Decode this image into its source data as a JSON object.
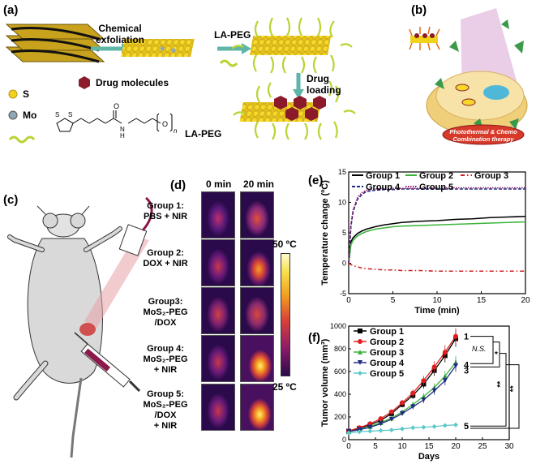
{
  "panel_labels": {
    "a": "(a)",
    "b": "(b)",
    "c": "(c)",
    "d": "(d)",
    "e": "(e)",
    "f": "(f)"
  },
  "panel_a": {
    "step1_line1": "Chemical",
    "step1_line2": "exfoliation",
    "step2": "LA-PEG",
    "step3_line1": "Drug",
    "step3_line2": "loading",
    "legend_s": "S",
    "legend_mo": "Mo",
    "legend_drug": "Drug molecules",
    "legend_peg": "LA-PEG",
    "colors": {
      "sheet": "#c8a21c",
      "sheet_dark": "#1a1a1a",
      "s_atom": "#f2d21a",
      "mo_atom": "#8fa6b4",
      "drug": "#8b1a2a",
      "peg": "#b8d432",
      "arrow": "#5fb6a8"
    }
  },
  "panel_b": {
    "caption_line1": "Photothermal & Chemo",
    "caption_line2": "Combination therapy"
  },
  "panel_d": {
    "time_headers": [
      "0 min",
      "20 min"
    ],
    "groups": [
      {
        "lines": [
          "Group 1:",
          "PBS  + NIR"
        ]
      },
      {
        "lines": [
          "Group 2:",
          "DOX + NIR"
        ]
      },
      {
        "lines": [
          "Group3:",
          "MoS₂-PEG",
          "/DOX"
        ]
      },
      {
        "lines": [
          "Group 4:",
          "MoS₂-PEG",
          "+ NIR"
        ]
      },
      {
        "lines": [
          "Group 5:",
          "MoS₂-PEG",
          "/DOX",
          "+ NIR"
        ]
      }
    ],
    "scale_max": "50 ºC",
    "scale_min": "25 ºC"
  },
  "chart_data": [
    {
      "type": "line",
      "xlabel": "Time (min)",
      "ylabel": "Temperature change (ºC)",
      "xlim": [
        0,
        20
      ],
      "ylim": [
        -5,
        15
      ],
      "xticks": [
        0,
        5,
        10,
        15,
        20
      ],
      "yticks": [
        -5,
        0,
        5,
        10,
        15
      ],
      "legend_position": "top",
      "x": [
        0,
        0.25,
        0.5,
        1,
        1.5,
        2,
        3,
        4,
        5,
        6,
        8,
        10,
        12,
        14,
        16,
        18,
        20
      ],
      "series": [
        {
          "name": "Group 1",
          "color": "#000000",
          "values": [
            0,
            3.5,
            4.2,
            4.9,
            5.3,
            5.6,
            6.0,
            6.3,
            6.5,
            6.7,
            6.9,
            7.0,
            7.2,
            7.3,
            7.5,
            7.6,
            7.7
          ]
        },
        {
          "name": "Group 2",
          "color": "#3cb43c",
          "values": [
            0,
            3.0,
            3.8,
            4.5,
            4.9,
            5.2,
            5.6,
            5.8,
            6.0,
            6.1,
            6.2,
            6.3,
            6.4,
            6.5,
            6.6,
            6.7,
            6.8
          ]
        },
        {
          "name": "Group 3",
          "color": "#d22020",
          "dash": "5,3,1.5,3",
          "values": [
            0,
            -0.2,
            -0.4,
            -0.6,
            -0.8,
            -0.9,
            -1.0,
            -1.1,
            -1.1,
            -1.2,
            -1.2,
            -1.3,
            -1.3,
            -1.3,
            -1.3,
            -1.3,
            -1.3
          ]
        },
        {
          "name": "Group 4",
          "color": "#202a80",
          "dash": "4,2",
          "values": [
            0,
            6.0,
            8.5,
            10.5,
            11.3,
            11.8,
            12.0,
            12.1,
            12.1,
            12.2,
            12.2,
            12.2,
            12.2,
            12.2,
            12.2,
            12.2,
            12.2
          ]
        },
        {
          "name": "Group 5",
          "color": "#8a1a6a",
          "dash": "1.5,1.5",
          "values": [
            0,
            6.2,
            8.8,
            10.8,
            11.6,
            12.0,
            12.2,
            12.3,
            12.3,
            12.3,
            12.3,
            12.4,
            12.4,
            12.4,
            12.4,
            12.4,
            12.4
          ]
        }
      ]
    },
    {
      "type": "line",
      "xlabel": "Days",
      "ylabel": "Tumor volume (mm³)",
      "xlim": [
        0,
        30
      ],
      "ylim": [
        0,
        1000
      ],
      "xticks": [
        0,
        5,
        10,
        15,
        20,
        25,
        30
      ],
      "yticks": [
        0,
        200,
        400,
        600,
        800,
        1000
      ],
      "legend_position": "top-left",
      "x": [
        0,
        2,
        4,
        6,
        8,
        10,
        12,
        14,
        16,
        18,
        20
      ],
      "series": [
        {
          "name": "Group 1",
          "color": "#000000",
          "marker": "square",
          "values": [
            75,
            100,
            130,
            170,
            230,
            310,
            390,
            490,
            610,
            740,
            890
          ]
        },
        {
          "name": "Group 2",
          "color": "#e02020",
          "marker": "circle",
          "values": [
            78,
            105,
            140,
            185,
            245,
            325,
            410,
            520,
            640,
            770,
            910
          ]
        },
        {
          "name": "Group 3",
          "color": "#3cb43c",
          "marker": "triangle-up",
          "values": [
            70,
            90,
            115,
            150,
            190,
            245,
            310,
            380,
            460,
            560,
            680
          ]
        },
        {
          "name": "Group 4",
          "color": "#202a80",
          "marker": "triangle-down",
          "values": [
            72,
            88,
            110,
            140,
            180,
            230,
            290,
            350,
            430,
            520,
            650
          ]
        },
        {
          "name": "Group 5",
          "color": "#5ec8c8",
          "marker": "diamond",
          "values": [
            60,
            70,
            75,
            80,
            85,
            95,
            105,
            110,
            115,
            125,
            130
          ]
        }
      ],
      "end_labels": [
        "1",
        "4",
        "3",
        "5"
      ],
      "significance": [
        "N.S.",
        "*",
        "**",
        "**"
      ]
    }
  ]
}
